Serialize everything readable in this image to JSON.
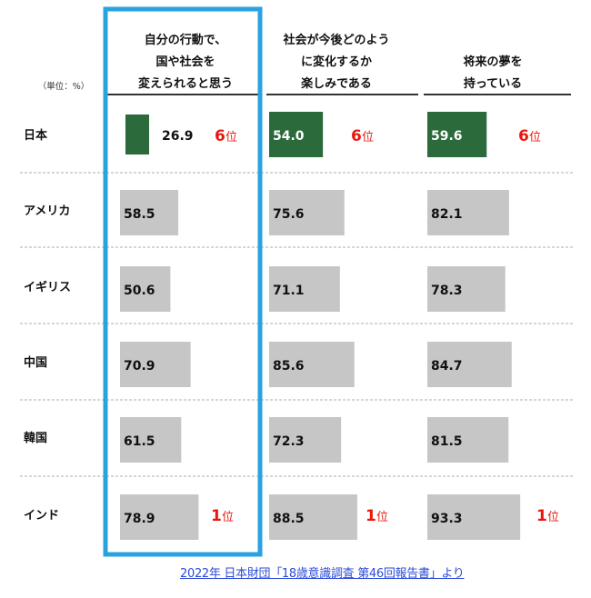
{
  "unit_label": "（単位：%）",
  "source": "2022年 日本財団「18歳意識調査 第46回報告書」より",
  "colors": {
    "highlight_bar": "#2a6a3b",
    "bar": "#c6c6c6",
    "rank": "#e8170e",
    "frame": "#29a3e0"
  },
  "chart_data": {
    "type": "bar",
    "orientation": "horizontal",
    "categories": [
      "日本",
      "アメリカ",
      "イギリス",
      "中国",
      "韓国",
      "インド"
    ],
    "series": [
      {
        "name": "自分の行動で、国や社会を変えられると思う",
        "header_lines": [
          "自分の行動で、",
          "国や社会を",
          "変えられると思う"
        ],
        "values": [
          26.9,
          58.5,
          50.6,
          70.9,
          61.5,
          78.9
        ]
      },
      {
        "name": "社会が今後どのように変化するか楽しみである",
        "header_lines": [
          "社会が今後どのよう",
          "に変化するか",
          "楽しみである"
        ],
        "values": [
          54.0,
          75.6,
          71.1,
          85.6,
          72.3,
          88.5
        ]
      },
      {
        "name": "将来の夢を持っている",
        "header_lines": [
          "将来の夢を",
          "持っている"
        ],
        "values": [
          59.6,
          82.1,
          78.3,
          84.7,
          81.5,
          93.3
        ]
      }
    ],
    "value_labels": [
      [
        "26.9",
        "58.5",
        "50.6",
        "70.9",
        "61.5",
        "78.9"
      ],
      [
        "54.0",
        "75.6",
        "71.1",
        "85.6",
        "72.3",
        "88.5"
      ],
      [
        "59.6",
        "82.1",
        "78.3",
        "84.7",
        "81.5",
        "93.3"
      ]
    ],
    "highlight_category": "日本",
    "ranks": [
      {
        "series": 0,
        "category": "日本",
        "text": "6",
        "suffix": "位"
      },
      {
        "series": 1,
        "category": "日本",
        "text": "6",
        "suffix": "位"
      },
      {
        "series": 2,
        "category": "日本",
        "text": "6",
        "suffix": "位"
      },
      {
        "series": 0,
        "category": "インド",
        "text": "1",
        "suffix": "位"
      },
      {
        "series": 1,
        "category": "インド",
        "text": "1",
        "suffix": "位"
      },
      {
        "series": 2,
        "category": "インド",
        "text": "1",
        "suffix": "位"
      }
    ],
    "highlighted_series": 0
  }
}
